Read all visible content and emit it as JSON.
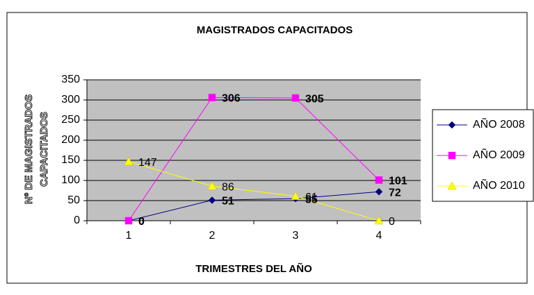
{
  "chart_data": {
    "type": "line",
    "title": "MAGISTRADOS CAPACITADOS",
    "x_label": "TRIMESTRES DEL AÑO",
    "y_label": [
      "Nº DE MAGISTRADOS",
      "CAPACITADOS"
    ],
    "categories": [
      "1",
      "2",
      "3",
      "4"
    ],
    "ylim": [
      0,
      350
    ],
    "yticks": [
      0,
      50,
      100,
      150,
      200,
      250,
      300,
      350
    ],
    "grid": true,
    "legend": "right",
    "series": [
      {
        "name": "AÑO 2008",
        "color": "#000080",
        "marker": "diamond",
        "values": [
          0,
          51,
          55,
          72
        ]
      },
      {
        "name": "AÑO 2009",
        "color": "#ff00ff",
        "marker": "square",
        "values": [
          0,
          306,
          305,
          101
        ]
      },
      {
        "name": "AÑO 2010",
        "color": "#ffff00",
        "marker": "triangle",
        "values": [
          147,
          86,
          61,
          0
        ]
      }
    ]
  }
}
